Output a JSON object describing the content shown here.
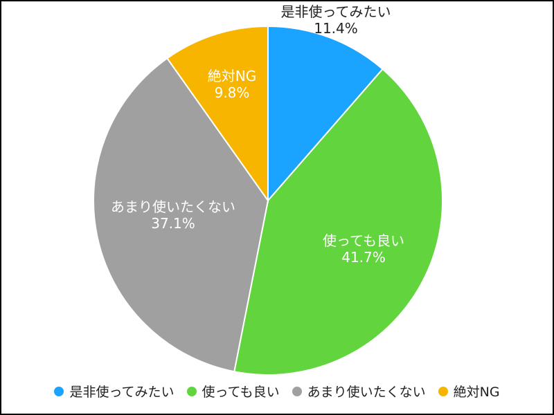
{
  "chart_data": {
    "type": "pie",
    "title": "",
    "start_angle": "12 o'clock",
    "direction": "clockwise",
    "legend_position": "bottom",
    "slices": [
      {
        "label": "是非使ってみたい",
        "value": 11.4,
        "value_label": "11.4%",
        "color": "#1AA3FF",
        "label_color": "#222222"
      },
      {
        "label": "使っても良い",
        "value": 41.7,
        "value_label": "41.7%",
        "color": "#62D53E",
        "label_color": "#ffffff"
      },
      {
        "label": "あまり使いたくない",
        "value": 37.1,
        "value_label": "37.1%",
        "color": "#A0A0A0",
        "label_color": "#ffffff"
      },
      {
        "label": "絶対NG",
        "value": 9.8,
        "value_label": "9.8%",
        "color": "#F7B500",
        "label_color": "#ffffff"
      }
    ]
  }
}
